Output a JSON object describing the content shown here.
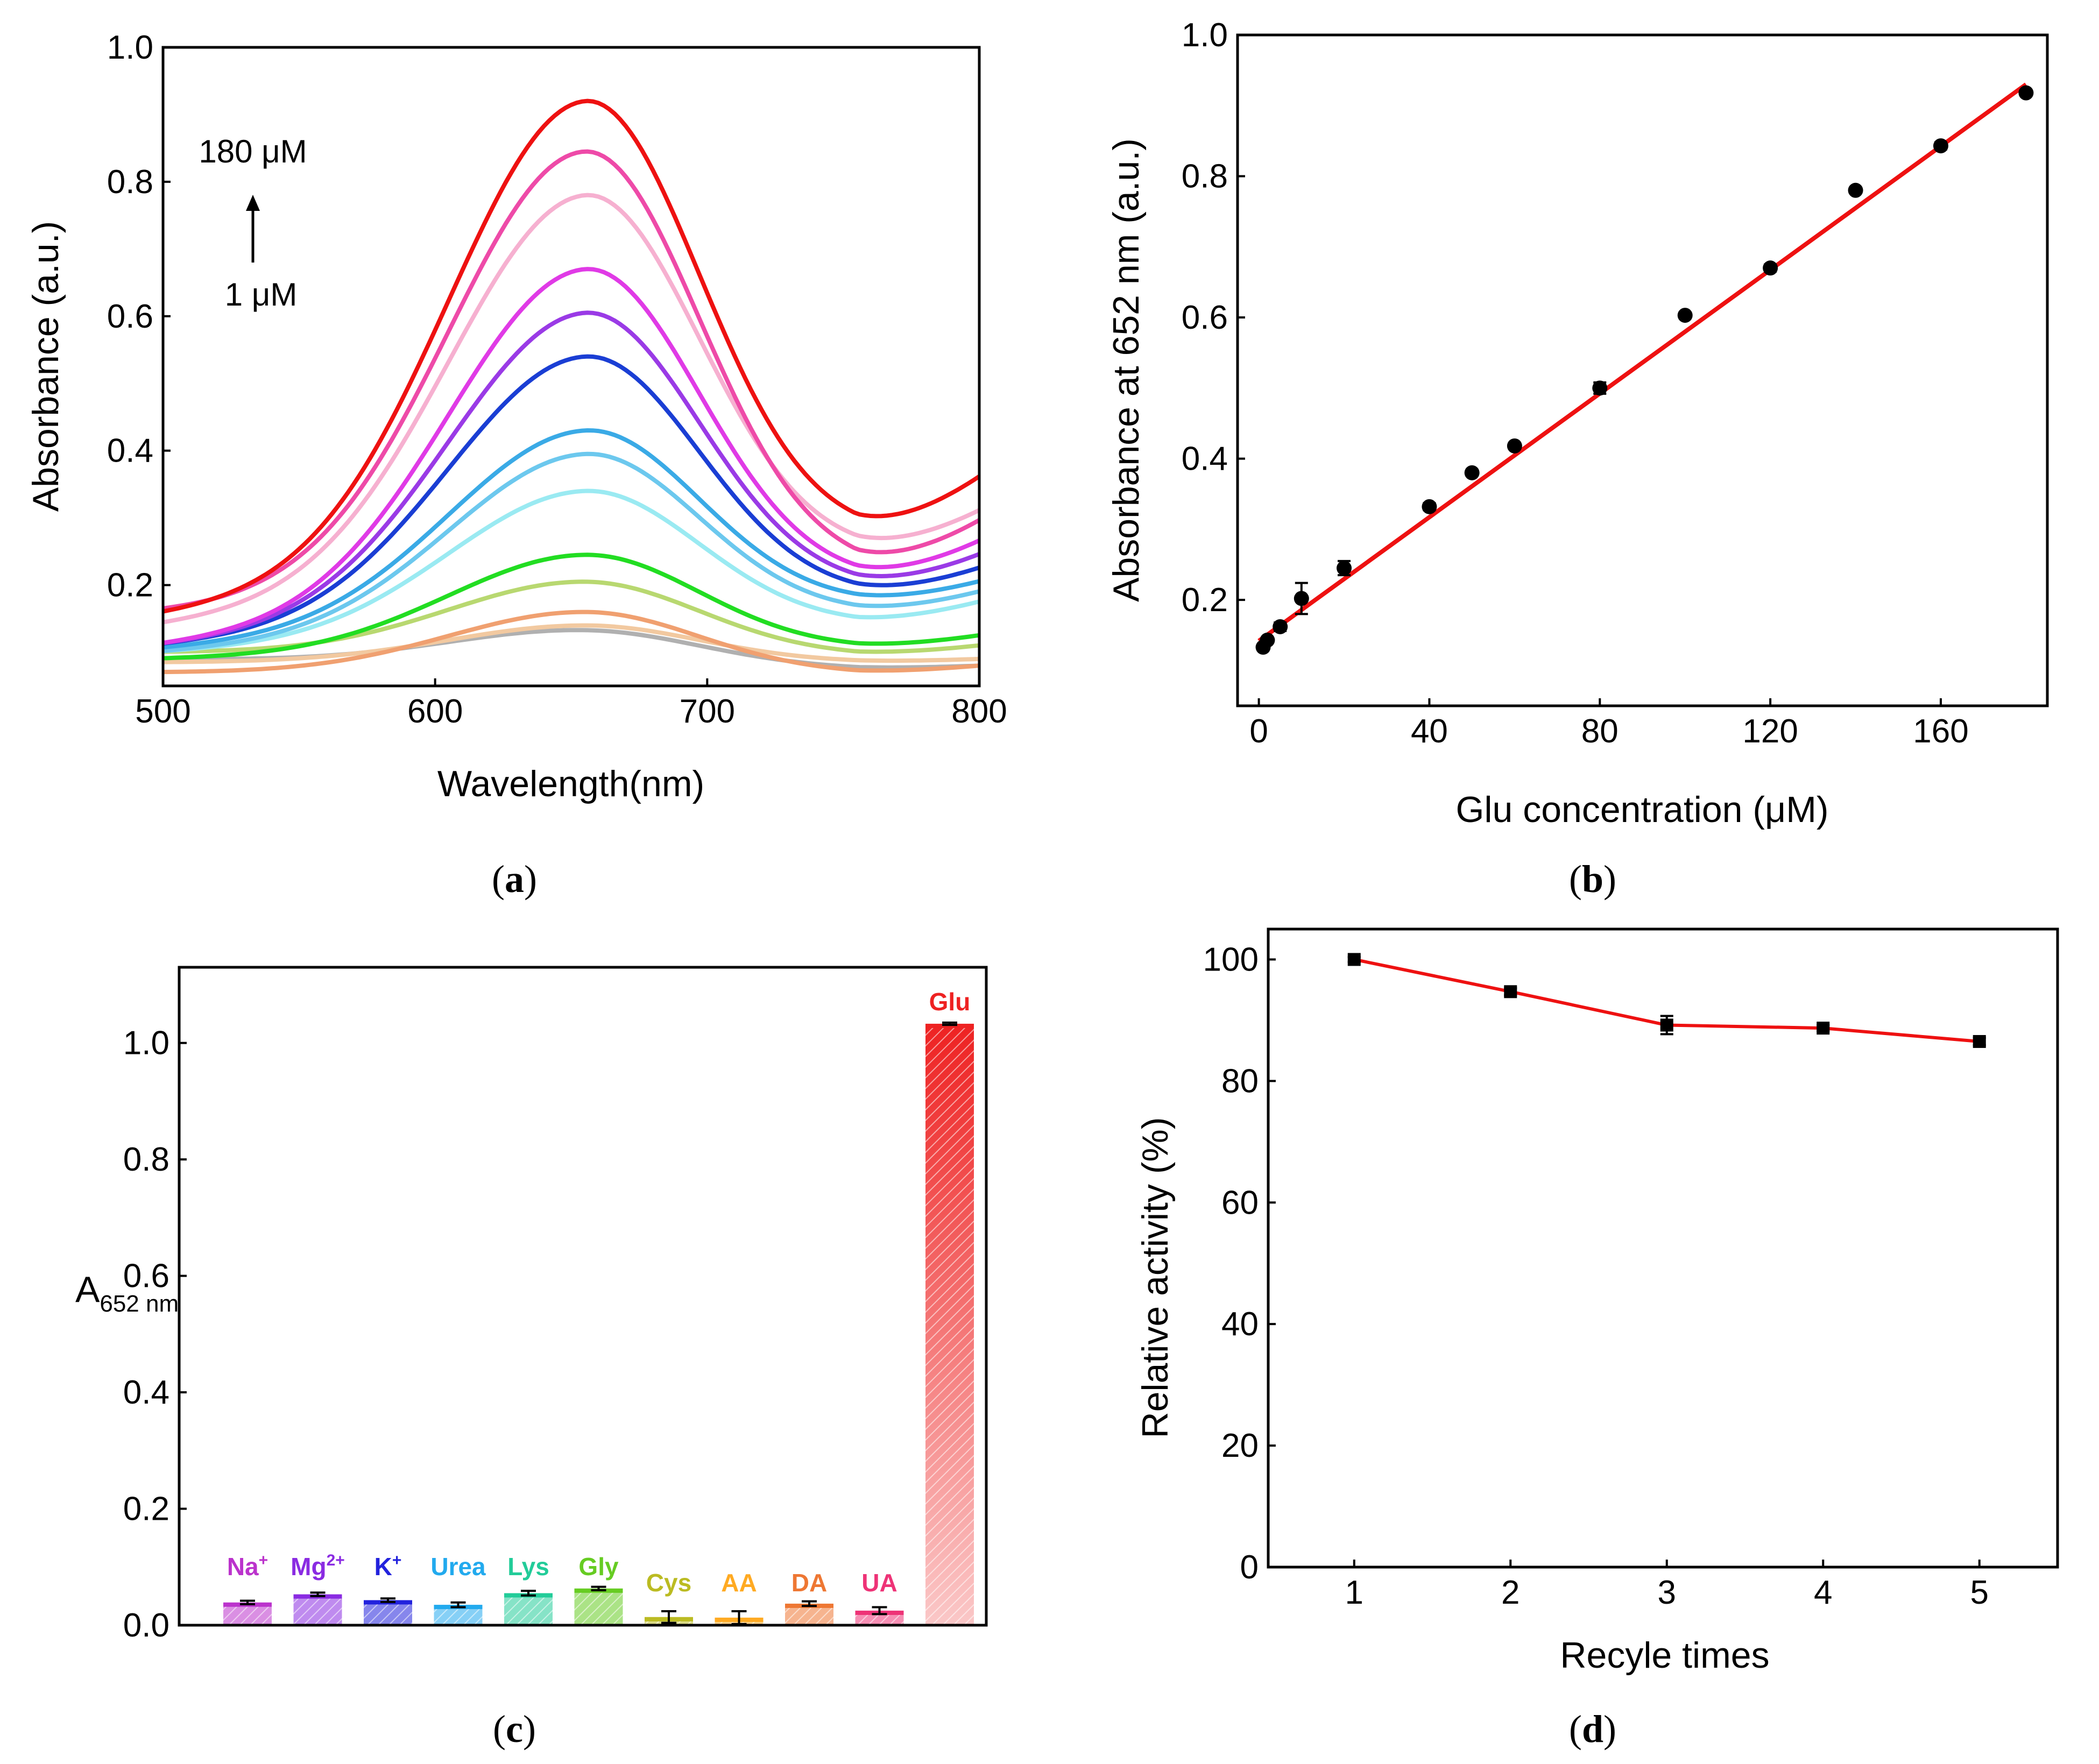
{
  "chart_data": [
    {
      "panel": "a",
      "type": "line",
      "xlabel": "Wavelength(nm)",
      "ylabel": "Absorbance (a.u.)",
      "xlim": [
        500,
        800
      ],
      "ylim": [
        0.05,
        1.0
      ],
      "xticks": [
        500,
        600,
        700,
        800
      ],
      "yticks": [
        0.2,
        0.4,
        0.6,
        0.8,
        1.0
      ],
      "annotation_top": "180 μM",
      "annotation_bottom": "1 μM",
      "series": [
        {
          "name": "s1",
          "color": "#b0b0b0",
          "start": 0.09,
          "peak": 0.133,
          "valley": 0.075,
          "end": 0.08
        },
        {
          "name": "s2",
          "color": "#f2c9a0",
          "start": 0.085,
          "peak": 0.14,
          "valley": 0.085,
          "end": 0.09
        },
        {
          "name": "s3",
          "color": "#f0a070",
          "start": 0.07,
          "peak": 0.16,
          "valley": 0.068,
          "end": 0.08
        },
        {
          "name": "s4",
          "color": "#b8d870",
          "start": 0.1,
          "peak": 0.205,
          "valley": 0.095,
          "end": 0.11
        },
        {
          "name": "s5",
          "color": "#22dd22",
          "start": 0.09,
          "peak": 0.245,
          "valley": 0.105,
          "end": 0.125
        },
        {
          "name": "s6",
          "color": "#9aeaf2",
          "start": 0.1,
          "peak": 0.34,
          "valley": 0.14,
          "end": 0.175
        },
        {
          "name": "s7",
          "color": "#6cc8ee",
          "start": 0.1,
          "peak": 0.395,
          "valley": 0.155,
          "end": 0.19
        },
        {
          "name": "s8",
          "color": "#3aaae6",
          "start": 0.105,
          "peak": 0.43,
          "valley": 0.17,
          "end": 0.205
        },
        {
          "name": "s9",
          "color": "#1a3ed4",
          "start": 0.11,
          "peak": 0.54,
          "valley": 0.18,
          "end": 0.225
        },
        {
          "name": "s10",
          "color": "#9a3ae6",
          "start": 0.11,
          "peak": 0.605,
          "valley": 0.19,
          "end": 0.245
        },
        {
          "name": "s11",
          "color": "#e03ae6",
          "start": 0.11,
          "peak": 0.67,
          "valley": 0.2,
          "end": 0.265
        },
        {
          "name": "s12",
          "color": "#f6b0d0",
          "start": 0.14,
          "peak": 0.78,
          "valley": 0.24,
          "end": 0.31
        },
        {
          "name": "s13",
          "color": "#ee4aa8",
          "start": 0.16,
          "peak": 0.845,
          "valley": 0.215,
          "end": 0.295
        },
        {
          "name": "s14",
          "color": "#ee1111",
          "start": 0.155,
          "peak": 0.92,
          "valley": 0.265,
          "end": 0.36
        }
      ]
    },
    {
      "panel": "b",
      "type": "scatter",
      "xlabel": "Glu concentration (μM)",
      "ylabel": "Absorbance at 652 nm (a.u.)",
      "xlim": [
        -5,
        185
      ],
      "ylim": [
        0.05,
        1.0
      ],
      "xticks": [
        0,
        40,
        80,
        120,
        160
      ],
      "yticks": [
        0.2,
        0.4,
        0.6,
        0.8,
        1.0
      ],
      "x": [
        1,
        2,
        5,
        10,
        20,
        40,
        50,
        60,
        80,
        100,
        120,
        140,
        160,
        180
      ],
      "y": [
        0.133,
        0.143,
        0.162,
        0.202,
        0.245,
        0.332,
        0.38,
        0.418,
        0.5,
        0.603,
        0.67,
        0.78,
        0.843,
        0.918
      ],
      "err": [
        0.004,
        0.004,
        0.006,
        0.022,
        0.01,
        0.005,
        0.004,
        0.004,
        0.008,
        0.004,
        0.005,
        0.004,
        0.005,
        0.004
      ],
      "fit": {
        "x": [
          0,
          180
        ],
        "y": [
          0.142,
          0.93
        ],
        "color": "#ee1111"
      }
    },
    {
      "panel": "c",
      "type": "bar",
      "ylabel": "A",
      "ylabel_sub": "652 nm",
      "ylim": [
        0,
        1.13
      ],
      "yticks": [
        0.0,
        0.2,
        0.4,
        0.6,
        0.8,
        1.0
      ],
      "categories": [
        "Na",
        "Mg",
        "K",
        "Urea",
        "Lys",
        "Gly",
        "Cys",
        "AA",
        "DA",
        "UA",
        "Glu"
      ],
      "superscripts": [
        "+",
        "2+",
        "+",
        "",
        "",
        "",
        "",
        "",
        "",
        "",
        ""
      ],
      "values": [
        0.039,
        0.053,
        0.043,
        0.035,
        0.055,
        0.063,
        0.014,
        0.013,
        0.037,
        0.025,
        1.033
      ],
      "errors": [
        0.003,
        0.003,
        0.003,
        0.004,
        0.004,
        0.003,
        0.01,
        0.011,
        0.004,
        0.006,
        0.002
      ],
      "colors": [
        "#bb33cc",
        "#8a2be2",
        "#2222dd",
        "#22aaee",
        "#22cc99",
        "#66cc22",
        "#bbbb22",
        "#ffaa22",
        "#ee7733",
        "#ee3377",
        "#ee2222"
      ]
    },
    {
      "panel": "d",
      "type": "line",
      "xlabel": "Recyle times",
      "ylabel": "Relative activity (%)",
      "xlim": [
        0.45,
        5.5
      ],
      "ylim": [
        0,
        105
      ],
      "xticks": [
        1,
        2,
        3,
        4,
        5
      ],
      "yticks": [
        0,
        20,
        40,
        60,
        80,
        100
      ],
      "x": [
        1,
        2,
        3,
        4,
        5
      ],
      "y": [
        100,
        94.7,
        89.2,
        88.7,
        86.5
      ],
      "err": [
        0.4,
        0.6,
        1.5,
        0.5,
        0.6
      ],
      "color": "#ee1111"
    }
  ],
  "panel_labels": {
    "a": "a",
    "b": "b",
    "c": "c",
    "d": "d"
  }
}
